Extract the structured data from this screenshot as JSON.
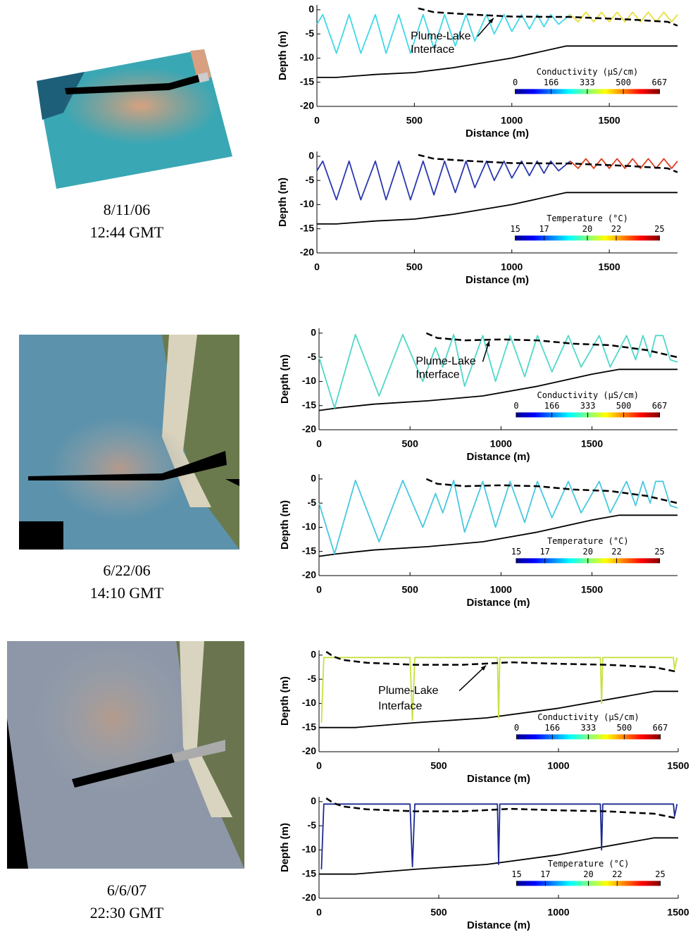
{
  "photos": [
    {
      "date": "8/11/06",
      "time": "12:44 GMT"
    },
    {
      "date": "6/22/06",
      "time": "14:10 GMT"
    },
    {
      "date": "6/6/07",
      "time": "22:30 GMT"
    }
  ],
  "chart_data": [
    {
      "type": "line",
      "xlabel": "Distance (m)",
      "ylabel": "Depth (m)",
      "xlim": [
        0,
        1850
      ],
      "xticks": [
        0,
        500,
        1000,
        1500
      ],
      "ylim": [
        -20,
        1
      ],
      "yticks": [
        -20,
        -15,
        -10,
        -5,
        0
      ],
      "annotation": [
        "Plume-Lake",
        "Interface"
      ],
      "colorbar": {
        "label": "Conductivity (μS/cm)",
        "lim": [
          0,
          667
        ],
        "ticks": [
          0,
          166,
          333,
          500,
          667
        ],
        "colormap": "jet"
      },
      "series": [
        {
          "color": "#000000",
          "linestyle": "solid",
          "x": [
            0,
            100,
            300,
            500,
            700,
            1000,
            1280,
            1850
          ],
          "values": [
            -14,
            -14,
            -13.4,
            -13,
            -12,
            -10,
            -7.5,
            -7.5
          ]
        },
        {
          "color": "#40d8e8",
          "linestyle": "solid",
          "x": [
            0,
            30,
            100,
            165,
            225,
            300,
            355,
            420,
            480,
            545,
            600,
            655,
            710,
            765,
            810,
            870,
            910,
            960,
            1000,
            1050,
            1090,
            1130,
            1165,
            1200,
            1240,
            1300
          ],
          "values": [
            -3,
            -1,
            -9,
            -1,
            -9,
            -1,
            -9,
            -1,
            -9,
            -1,
            -8,
            -1,
            -7.5,
            -1,
            -6.5,
            -1,
            -5,
            -1,
            -4.5,
            -1,
            -4,
            -1,
            -3.5,
            -1,
            -3,
            -1
          ]
        },
        {
          "color": "#e8e040",
          "linestyle": "solid",
          "x": [
            1300,
            1340,
            1380,
            1420,
            1460,
            1500,
            1540,
            1580,
            1620,
            1660,
            1700,
            1740,
            1780,
            1820,
            1850
          ],
          "values": [
            -1,
            -2.5,
            -0.5,
            -2.5,
            -0.5,
            -2.5,
            -0.5,
            -2.5,
            -0.5,
            -2.5,
            -0.5,
            -2.5,
            -0.5,
            -2.5,
            -1
          ]
        },
        {
          "color": "#000000",
          "linestyle": "dashed",
          "x": [
            520,
            600,
            800,
            1000,
            1300,
            1600,
            1800,
            1850
          ],
          "values": [
            0.3,
            -0.5,
            -1,
            -1.4,
            -1.5,
            -2,
            -2.5,
            -3.3
          ]
        }
      ]
    },
    {
      "type": "line",
      "xlabel": "Distance (m)",
      "ylabel": "Depth (m)",
      "xlim": [
        0,
        1850
      ],
      "xticks": [
        0,
        500,
        1000,
        1500
      ],
      "ylim": [
        -20,
        1
      ],
      "yticks": [
        -20,
        -15,
        -10,
        -5,
        0
      ],
      "colorbar": {
        "label": "Temperature (°C)",
        "lim": [
          15,
          25
        ],
        "ticks": [
          15,
          17,
          20,
          22,
          25
        ],
        "colormap": "jet"
      },
      "series": [
        {
          "color": "#000000",
          "linestyle": "solid",
          "x": [
            0,
            100,
            300,
            500,
            700,
            1000,
            1280,
            1850
          ],
          "values": [
            -14,
            -14,
            -13.4,
            -13,
            -12,
            -10,
            -7.5,
            -7.5
          ]
        },
        {
          "color": "#2a38b0",
          "linestyle": "solid",
          "x": [
            0,
            30,
            100,
            165,
            225,
            300,
            355,
            420,
            480,
            545,
            600,
            655,
            710,
            765,
            810,
            870,
            910,
            960,
            1000,
            1050,
            1090,
            1130,
            1165,
            1200,
            1240,
            1300
          ],
          "values": [
            -3,
            -1,
            -9,
            -1,
            -9,
            -1,
            -9,
            -1,
            -9,
            -1,
            -8,
            -1,
            -7.5,
            -1,
            -6.5,
            -1,
            -5,
            -1,
            -4.5,
            -1,
            -4,
            -1,
            -3.5,
            -1,
            -3,
            -1
          ]
        },
        {
          "color": "#e04020",
          "linestyle": "solid",
          "x": [
            1300,
            1340,
            1380,
            1420,
            1460,
            1500,
            1540,
            1580,
            1620,
            1660,
            1700,
            1740,
            1780,
            1820,
            1850
          ],
          "values": [
            -1,
            -2.5,
            -0.5,
            -2.5,
            -0.5,
            -2.5,
            -0.5,
            -2.5,
            -0.5,
            -2.5,
            -0.5,
            -2.5,
            -0.5,
            -2.5,
            -1
          ]
        },
        {
          "color": "#000000",
          "linestyle": "dashed",
          "x": [
            520,
            600,
            800,
            1000,
            1300,
            1600,
            1800,
            1850
          ],
          "values": [
            0.3,
            -0.5,
            -1,
            -1.4,
            -1.5,
            -2,
            -2.5,
            -3.3
          ]
        }
      ]
    },
    {
      "type": "line",
      "xlabel": "Distance (m)",
      "ylabel": "Depth (m)",
      "xlim": [
        0,
        1970
      ],
      "xticks": [
        0,
        500,
        1000,
        1500
      ],
      "ylim": [
        -20,
        1
      ],
      "yticks": [
        -20,
        -15,
        -10,
        -5,
        0
      ],
      "annotation": [
        "Plume-Lake",
        "Interface"
      ],
      "colorbar": {
        "label": "Conductivity (μS/cm)",
        "lim": [
          0,
          667
        ],
        "ticks": [
          0,
          166,
          333,
          500,
          667
        ],
        "colormap": "jet"
      },
      "series": [
        {
          "color": "#000000",
          "linestyle": "solid",
          "x": [
            0,
            100,
            300,
            600,
            900,
            1200,
            1500,
            1650,
            1970
          ],
          "values": [
            -16,
            -15.5,
            -14.7,
            -14,
            -13,
            -11,
            -8.5,
            -7.5,
            -7.5
          ]
        },
        {
          "color": "#50d8c8",
          "linestyle": "solid",
          "x": [
            0,
            85,
            200,
            330,
            460,
            570,
            640,
            680,
            740,
            800,
            900,
            970,
            1050,
            1130,
            1200,
            1280,
            1370,
            1440,
            1540,
            1600,
            1690,
            1740,
            1780,
            1820,
            1850,
            1890,
            1930,
            1970
          ],
          "values": [
            -5,
            -15.5,
            -0.3,
            -13,
            -0.3,
            -10,
            -3,
            -7,
            -0.3,
            -11,
            -0.5,
            -10,
            -0.5,
            -9,
            -0.5,
            -8,
            -0.5,
            -7,
            -0.5,
            -7,
            -0.5,
            -5.5,
            -0.5,
            -5,
            -0.5,
            -0.5,
            -5.5,
            -6
          ]
        },
        {
          "color": "#000000",
          "linestyle": "dashed",
          "x": [
            590,
            650,
            800,
            1000,
            1200,
            1400,
            1600,
            1800,
            1970
          ],
          "values": [
            0,
            -1,
            -1.5,
            -1.3,
            -1.5,
            -2.2,
            -2.5,
            -3.5,
            -5
          ]
        }
      ]
    },
    {
      "type": "line",
      "xlabel": "Distance (m)",
      "ylabel": "Depth (m)",
      "xlim": [
        0,
        1970
      ],
      "xticks": [
        0,
        500,
        1000,
        1500
      ],
      "ylim": [
        -20,
        1
      ],
      "yticks": [
        -20,
        -15,
        -10,
        -5,
        0
      ],
      "colorbar": {
        "label": "Temperature (°C)",
        "lim": [
          15,
          25
        ],
        "ticks": [
          15,
          17,
          20,
          22,
          25
        ],
        "colormap": "jet"
      },
      "series": [
        {
          "color": "#000000",
          "linestyle": "solid",
          "x": [
            0,
            100,
            300,
            600,
            900,
            1200,
            1500,
            1650,
            1970
          ],
          "values": [
            -16,
            -15.5,
            -14.7,
            -14,
            -13,
            -11,
            -8.5,
            -7.5,
            -7.5
          ]
        },
        {
          "color": "#48c8e0",
          "linestyle": "solid",
          "x": [
            0,
            85,
            200,
            330,
            460,
            570,
            640,
            680,
            740,
            800,
            900,
            970,
            1050,
            1130,
            1200,
            1280,
            1370,
            1440,
            1540,
            1600,
            1690,
            1740,
            1780,
            1820,
            1850,
            1890,
            1930,
            1970
          ],
          "values": [
            -5,
            -15.5,
            -0.3,
            -13,
            -0.3,
            -10,
            -3,
            -7,
            -0.3,
            -11,
            -0.5,
            -10,
            -0.5,
            -9,
            -0.5,
            -8,
            -0.5,
            -7,
            -0.5,
            -7,
            -0.5,
            -5.5,
            -0.5,
            -5,
            -0.5,
            -0.5,
            -5.5,
            -6
          ]
        },
        {
          "color": "#000000",
          "linestyle": "dashed",
          "x": [
            590,
            650,
            800,
            1000,
            1200,
            1400,
            1600,
            1800,
            1970
          ],
          "values": [
            0,
            -1,
            -1.5,
            -1.3,
            -1.5,
            -2.2,
            -2.5,
            -3.5,
            -5
          ]
        }
      ]
    },
    {
      "type": "line",
      "xlabel": "Distance (m)",
      "ylabel": "Depth (m)",
      "xlim": [
        0,
        1500
      ],
      "xticks": [
        0,
        500,
        1000,
        1500
      ],
      "ylim": [
        -20,
        1
      ],
      "yticks": [
        -20,
        -15,
        -10,
        -5,
        0
      ],
      "annotation": [
        "Plume-Lake",
        "Interface"
      ],
      "colorbar": {
        "label": "Conductivity (μS/cm)",
        "lim": [
          0,
          667
        ],
        "ticks": [
          0,
          166,
          333,
          500,
          667
        ],
        "colormap": "jet"
      },
      "series": [
        {
          "color": "#000000",
          "linestyle": "solid",
          "x": [
            0,
            150,
            400,
            700,
            1000,
            1400,
            1500
          ],
          "values": [
            -15,
            -15,
            -14,
            -13,
            -11,
            -7.5,
            -7.5
          ]
        },
        {
          "color": "#c8e040",
          "linestyle": "solid",
          "x": [
            10,
            20,
            380,
            390,
            400,
            745,
            750,
            755,
            1175,
            1180,
            1185,
            1480,
            1485,
            1495
          ],
          "values": [
            -14,
            -0.5,
            -0.5,
            -13.5,
            -0.5,
            -0.5,
            -13,
            -0.5,
            -0.5,
            -10,
            -0.5,
            -0.5,
            -3,
            -0.5
          ]
        },
        {
          "color": "#000000",
          "linestyle": "dashed",
          "x": [
            30,
            60,
            100,
            200,
            400,
            600,
            800,
            1000,
            1200,
            1400,
            1500
          ],
          "values": [
            0.7,
            -0.3,
            -1,
            -1.6,
            -2,
            -2,
            -1.5,
            -1.8,
            -2,
            -2.5,
            -3.5
          ]
        }
      ]
    },
    {
      "type": "line",
      "xlabel": "Distance (m)",
      "ylabel": "Depth (m)",
      "xlim": [
        0,
        1500
      ],
      "xticks": [
        0,
        500,
        1000,
        1500
      ],
      "ylim": [
        -20,
        1
      ],
      "yticks": [
        -20,
        -15,
        -10,
        -5,
        0
      ],
      "colorbar": {
        "label": "Temperature (°C)",
        "lim": [
          15,
          25
        ],
        "ticks": [
          15,
          17,
          20,
          22,
          25
        ],
        "colormap": "jet"
      },
      "series": [
        {
          "color": "#000000",
          "linestyle": "solid",
          "x": [
            0,
            150,
            400,
            700,
            1000,
            1400,
            1500
          ],
          "values": [
            -15,
            -15,
            -14,
            -13,
            -11,
            -7.5,
            -7.5
          ]
        },
        {
          "color": "#1c2a90",
          "linestyle": "solid",
          "x": [
            10,
            20,
            380,
            390,
            400,
            745,
            750,
            755,
            1175,
            1180,
            1185,
            1480,
            1485,
            1495
          ],
          "values": [
            -14,
            -0.5,
            -0.5,
            -13.5,
            -0.5,
            -0.5,
            -13,
            -0.5,
            -0.5,
            -10,
            -0.5,
            -0.5,
            -3,
            -0.5
          ]
        },
        {
          "color": "#000000",
          "linestyle": "dashed",
          "x": [
            30,
            60,
            100,
            200,
            400,
            600,
            800,
            1000,
            1200,
            1400,
            1500
          ],
          "values": [
            0.7,
            -0.3,
            -1,
            -1.6,
            -2,
            -2,
            -1.5,
            -1.8,
            -2,
            -2.5,
            -3.5
          ]
        }
      ]
    }
  ]
}
